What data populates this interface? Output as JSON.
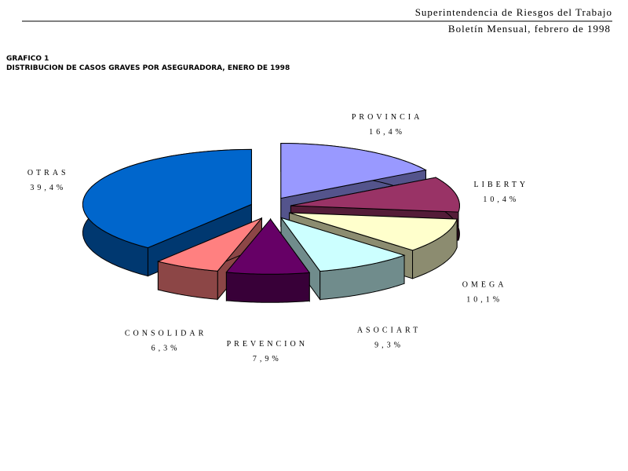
{
  "header": {
    "org": "Superintendencia de Riesgos del Trabajo",
    "issue": "Boletín Mensual, febrero de 1998"
  },
  "chart_data": {
    "type": "pie",
    "title": "GRAFICO 1",
    "subtitle": "DISTRIBUCION DE CASOS GRAVES POR ASEGURADORA, ENERO DE 1998",
    "categories": [
      "PROVINCIA",
      "LIBERTY",
      "OMEGA",
      "ASOCIART",
      "PREVENCION",
      "CONSOLIDAR",
      "OTRAS"
    ],
    "values": [
      16.4,
      10.4,
      10.1,
      9.3,
      7.9,
      6.3,
      39.4
    ],
    "value_labels": [
      "16,4%",
      "10,4%",
      "10,1%",
      "9,3%",
      "7,9%",
      "6,3%",
      "39,4%"
    ],
    "colors": [
      "#9999ff",
      "#993366",
      "#ffffcc",
      "#ccffff",
      "#660066",
      "#ff8080",
      "#0066cc"
    ]
  }
}
